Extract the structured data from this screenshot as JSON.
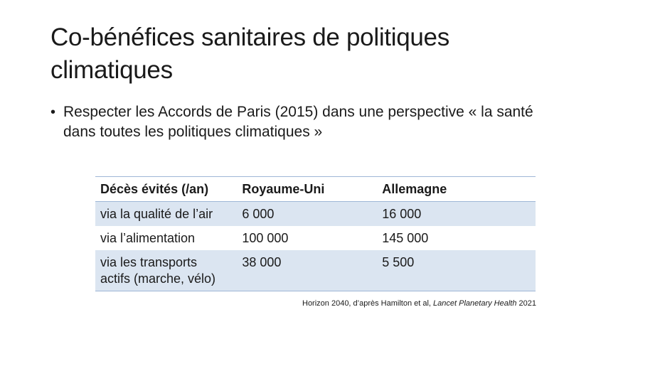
{
  "slide": {
    "title_line1": "Co-bénéfices sanitaires de politiques",
    "title_line2": "climatiques",
    "bullets": [
      {
        "line1": "Respecter les Accords de Paris (2015) dans une perspective « la santé",
        "line2": "dans toutes les politiques climatiques »"
      }
    ],
    "table": {
      "headers": [
        "Décès évités (/an)",
        "Royaume-Uni",
        "Allemagne"
      ],
      "rows": [
        {
          "label": "via la qualité de l’air",
          "uk": "6 000",
          "de": "16 000"
        },
        {
          "label": "via l’alimentation",
          "uk": "100 000",
          "de": "145 000"
        },
        {
          "label_line1": "via les transports",
          "label_line2": "actifs (marche, vélo)",
          "uk": "38 000",
          "de": "5 500"
        }
      ]
    },
    "source": {
      "prefix": "Horizon 2040, d’après Hamilton et al, ",
      "journal": "Lancet Planetary Health",
      "year": " 2021"
    }
  },
  "colors": {
    "band": "#dbe5f1",
    "rule": "#9fb7d6",
    "text": "#1a1a1a"
  }
}
